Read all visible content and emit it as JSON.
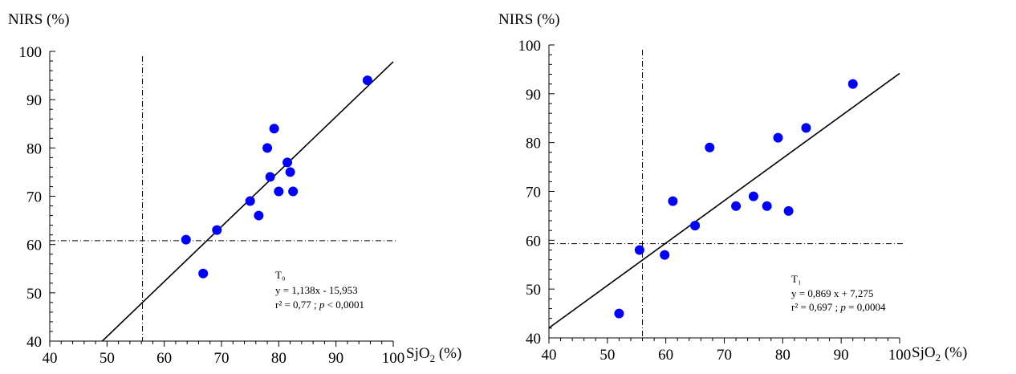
{
  "chart_data": [
    {
      "type": "scatter",
      "ylabel": "NIRS (%)",
      "xlabel": "SjO2 (%)",
      "xlim": [
        40,
        100
      ],
      "ylim": [
        40,
        100
      ],
      "xticks": [
        "40",
        "50",
        "60",
        "70",
        "80",
        "90",
        "100"
      ],
      "yticks": [
        "40",
        "50",
        "60",
        "70",
        "80",
        "90",
        "100"
      ],
      "ref_lines": {
        "x": 56.2,
        "y": 60.8
      },
      "regression": {
        "slope": 1.138,
        "intercept": -15.953
      },
      "annotation": {
        "label": "T₀",
        "equation": "y = 1,138x - 15,953",
        "r2_prefix": "r² = 0,77 ; ",
        "p_symbol": "p",
        "p_value": " < 0,0001"
      },
      "point_color": "#0000ff",
      "points": [
        {
          "x": 63.8,
          "y": 61
        },
        {
          "x": 66.8,
          "y": 54
        },
        {
          "x": 69.2,
          "y": 63
        },
        {
          "x": 75.0,
          "y": 69
        },
        {
          "x": 76.5,
          "y": 66
        },
        {
          "x": 78.0,
          "y": 80
        },
        {
          "x": 78.5,
          "y": 74
        },
        {
          "x": 79.2,
          "y": 84
        },
        {
          "x": 80.0,
          "y": 71
        },
        {
          "x": 81.5,
          "y": 77
        },
        {
          "x": 82.0,
          "y": 75
        },
        {
          "x": 82.5,
          "y": 71
        },
        {
          "x": 95.5,
          "y": 94
        }
      ]
    },
    {
      "type": "scatter",
      "ylabel": "NIRS (%)",
      "xlabel": "SjO2 (%)",
      "xlim": [
        40,
        100
      ],
      "ylim": [
        40,
        100
      ],
      "xticks": [
        "40",
        "50",
        "60",
        "70",
        "80",
        "90",
        "100"
      ],
      "yticks": [
        "40",
        "50",
        "60",
        "70",
        "80",
        "90",
        "100"
      ],
      "ref_lines": {
        "x": 56.0,
        "y": 59.3
      },
      "regression": {
        "slope": 0.869,
        "intercept": 7.275
      },
      "annotation": {
        "label": "T₁",
        "equation": "y = 0,869 x + 7,275",
        "r2_prefix": "r² = 0,697 ; ",
        "p_symbol": "p",
        "p_value": " = 0,0004"
      },
      "point_color": "#0000ff",
      "points": [
        {
          "x": 52.0,
          "y": 45
        },
        {
          "x": 55.5,
          "y": 58
        },
        {
          "x": 59.8,
          "y": 57
        },
        {
          "x": 61.2,
          "y": 68
        },
        {
          "x": 65.0,
          "y": 63
        },
        {
          "x": 67.5,
          "y": 79
        },
        {
          "x": 72.0,
          "y": 67
        },
        {
          "x": 75.0,
          "y": 69
        },
        {
          "x": 77.3,
          "y": 67
        },
        {
          "x": 79.2,
          "y": 81
        },
        {
          "x": 81.0,
          "y": 66
        },
        {
          "x": 84.0,
          "y": 83
        },
        {
          "x": 92.0,
          "y": 92
        }
      ]
    }
  ]
}
